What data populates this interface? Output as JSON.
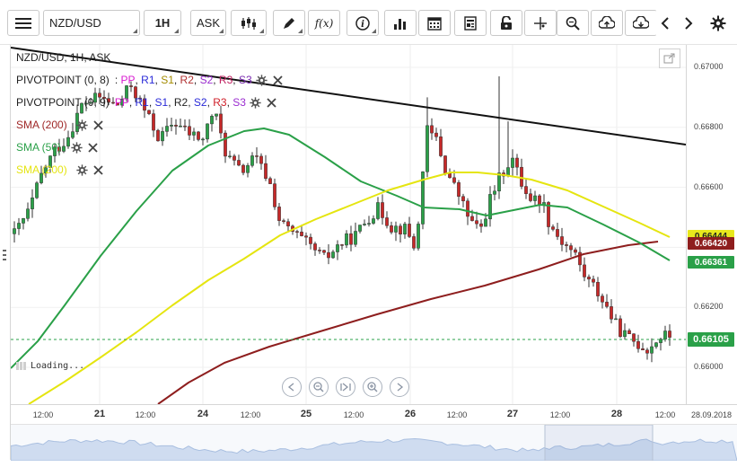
{
  "toolbar": {
    "symbol": "NZD/USD",
    "timeframe": "1H",
    "price_side": "ASK"
  },
  "chart_title": "NZD/USD, 1H, ASK",
  "legend": [
    {
      "name": "PIVOTPOINT (0, 8)",
      "color": "#222222",
      "suffix": [
        {
          "t": ": ",
          "c": "#222222"
        },
        {
          "t": "PP",
          "c": "#d81bd0"
        },
        {
          "t": ", ",
          "c": "#222222"
        },
        {
          "t": "R1",
          "c": "#2a2ad8"
        },
        {
          "t": ", ",
          "c": "#222222"
        },
        {
          "t": "S1",
          "c": "#a38b00"
        },
        {
          "t": ", ",
          "c": "#222222"
        },
        {
          "t": "R2",
          "c": "#b03030"
        },
        {
          "t": ", ",
          "c": "#222222"
        },
        {
          "t": "S2",
          "c": "#9b2dd0"
        },
        {
          "t": ", ",
          "c": "#222222"
        },
        {
          "t": "R3",
          "c": "#c02060"
        },
        {
          "t": ", ",
          "c": "#222222"
        },
        {
          "t": "S3",
          "c": "#7a2bb0"
        }
      ],
      "icons": true
    },
    {
      "name": "PIVOTPOINT (0, 9)",
      "color": "#222222",
      "suffix": [
        {
          "t": "PP",
          "c": "#d81bd0"
        },
        {
          "t": ", ",
          "c": "#222222"
        },
        {
          "t": "R1",
          "c": "#2a2ad8"
        },
        {
          "t": ", ",
          "c": "#222222"
        },
        {
          "t": "S1",
          "c": "#2a2ad8"
        },
        {
          "t": ", ",
          "c": "#222222"
        },
        {
          "t": "R2",
          "c": "#222222"
        },
        {
          "t": ", ",
          "c": "#222222"
        },
        {
          "t": "S2",
          "c": "#2a2ad8"
        },
        {
          "t": ", ",
          "c": "#222222"
        },
        {
          "t": "R3",
          "c": "#d0202a"
        },
        {
          "t": ", ",
          "c": "#222222"
        },
        {
          "t": "S3",
          "c": "#9b2dd0"
        }
      ],
      "icons": true
    },
    {
      "name": "SMA (200)",
      "color": "#a02828",
      "suffix": [],
      "icons": true
    },
    {
      "name": "SMA (50)",
      "color": "#2aa048",
      "suffix": [],
      "icons": true
    },
    {
      "name": "SMA (200)",
      "color": "#e5e510",
      "suffix": [],
      "icons": true
    }
  ],
  "price_axis": {
    "labels": [
      "0.67000",
      "0.66800",
      "0.66600",
      "0.66400",
      "0.66200",
      "0.66000"
    ],
    "tags": [
      {
        "value": "0.66444",
        "color": "#e8e81c",
        "text_color": "#222222"
      },
      {
        "value": "0.66420",
        "color": "#8e1e1e",
        "text_color": "#ffffff"
      },
      {
        "value": "0.66361",
        "color": "#2aa048",
        "text_color": "#ffffff"
      },
      {
        "value": "0.66105",
        "color": "#2aa048",
        "text_color": "#ffffff"
      }
    ]
  },
  "time_axis": {
    "labels": [
      {
        "text": "12:00",
        "bold": false
      },
      {
        "text": "21",
        "bold": true
      },
      {
        "text": "12:00",
        "bold": false
      },
      {
        "text": "24",
        "bold": true
      },
      {
        "text": "12:00",
        "bold": false
      },
      {
        "text": "25",
        "bold": true
      },
      {
        "text": "12:00",
        "bold": false
      },
      {
        "text": "26",
        "bold": true
      },
      {
        "text": "12:00",
        "bold": false
      },
      {
        "text": "27",
        "bold": true
      },
      {
        "text": "12:00",
        "bold": false
      },
      {
        "text": "28",
        "bold": true
      },
      {
        "text": "12:00",
        "bold": false
      },
      {
        "text": "28.09.2018",
        "bold": false
      }
    ]
  },
  "loading_text": "Loading...",
  "colors": {
    "bull": "#2aa048",
    "bear": "#c62828",
    "sma200_red": "#8e1e1e",
    "sma50_green": "#2aa048",
    "sma200_yellow": "#e5e510",
    "trendline": "#111111",
    "current_price_line": "#2aa048"
  }
}
